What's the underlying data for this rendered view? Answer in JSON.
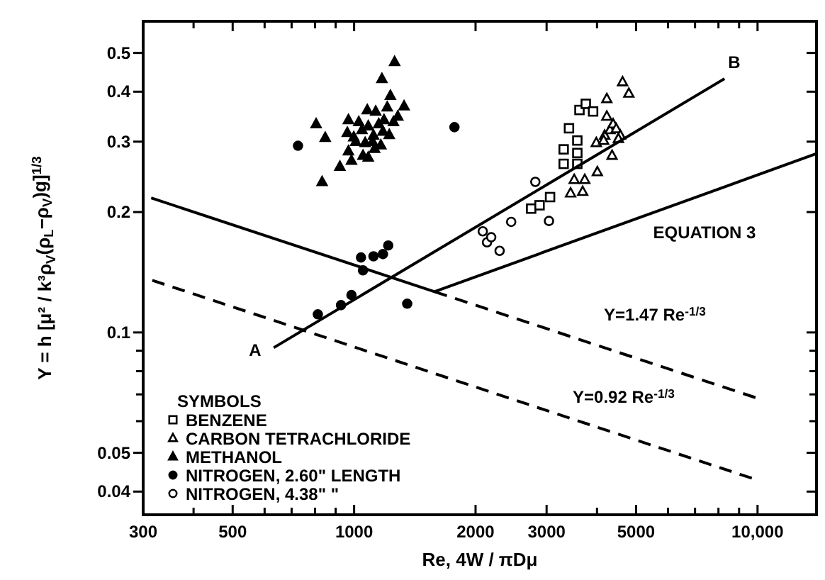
{
  "chart_data": {
    "type": "scatter",
    "xlabel": "Re, 4W / πDμ",
    "ylabel": "Y = h [μ² / k³ρ$_{V}$(ρ$_{L}$−ρ$_{V}$)g]$^{1/3}$",
    "legend_title": "SYMBOLS",
    "log": "xy",
    "grid": false,
    "legend": "bottom left",
    "xlim": [
      300,
      14000
    ],
    "ylim": [
      0.035,
      0.6
    ],
    "xticks": [
      300,
      {
        "value": 400,
        "label": null
      },
      500,
      {
        "value": 600,
        "label": null
      },
      {
        "value": 700,
        "label": null
      },
      {
        "value": 800,
        "label": null
      },
      {
        "value": 900,
        "label": null
      },
      1000,
      2000,
      3000,
      {
        "value": 4000,
        "label": null
      },
      5000,
      {
        "value": 6000,
        "label": null
      },
      {
        "value": 7000,
        "label": null
      },
      {
        "value": 8000,
        "label": null
      },
      {
        "value": 9000,
        "label": null
      },
      {
        "value": 10000,
        "label": "10,000"
      }
    ],
    "yticks": [
      0.04,
      0.05,
      {
        "value": 0.06,
        "label": null
      },
      {
        "value": 0.07,
        "label": null
      },
      {
        "value": 0.08,
        "label": null
      },
      {
        "value": 0.09,
        "label": null
      },
      0.1,
      0.2,
      0.3,
      0.4,
      0.5
    ],
    "series": [
      {
        "name": "BENZENE",
        "color": "#ffffff",
        "marker": "square",
        "x": [
          3307,
          3307,
          3409,
          3575,
          3575,
          3575,
          3619,
          3752,
          3912,
          2747,
          2882,
          3060
        ],
        "values": [
          0.287,
          0.264,
          0.324,
          0.302,
          0.281,
          0.264,
          0.36,
          0.373,
          0.357,
          0.204,
          0.208,
          0.218
        ]
      },
      {
        "name": "CARBON TETRACHLORIDE",
        "color": "#ffffff",
        "marker": "triangle",
        "x": [
          3440,
          3686,
          3512,
          3730,
          4008,
          4359,
          3984,
          4179,
          4306,
          4230,
          4230,
          4385,
          4464,
          4571,
          4628,
          4797,
          4519,
          4154
        ],
        "values": [
          0.223,
          0.225,
          0.241,
          0.241,
          0.252,
          0.277,
          0.298,
          0.311,
          0.321,
          0.347,
          0.384,
          0.332,
          0.323,
          0.311,
          0.423,
          0.396,
          0.305,
          0.302
        ]
      },
      {
        "name": "METHANOL",
        "color": "#000000",
        "marker": "triangle",
        "x": [
          805,
          848,
          833,
          922,
          968,
          985,
          968,
          962,
          1009,
          1052,
          1046,
          1078,
          1065,
          1084,
          1117,
          1124,
          1131,
          1151,
          1165,
          1179,
          1186,
          1208,
          1230,
          1222,
          1252,
          1283,
          1330,
          1172,
          1260,
          1111,
          1084,
          1027,
          998
        ],
        "values": [
          0.332,
          0.307,
          0.238,
          0.26,
          0.284,
          0.269,
          0.34,
          0.316,
          0.3,
          0.277,
          0.321,
          0.36,
          0.298,
          0.328,
          0.311,
          0.288,
          0.357,
          0.332,
          0.294,
          0.318,
          0.34,
          0.366,
          0.391,
          0.312,
          0.336,
          0.347,
          0.368,
          0.431,
          0.475,
          0.3,
          0.274,
          0.336,
          0.308
        ]
      },
      {
        "name": "NITROGEN, 2.60\" LENGTH",
        "color": "#000000",
        "marker": "circle",
        "x": [
          813,
          928,
          985,
          1052,
          1040,
          1117,
          1179,
          1215,
          1354,
          1773,
          726
        ],
        "values": [
          0.111,
          0.117,
          0.124,
          0.143,
          0.154,
          0.155,
          0.157,
          0.165,
          0.118,
          0.326,
          0.293
        ]
      },
      {
        "name": "NITROGEN, 4.38\"     \"",
        "color": "#ffffff",
        "marker": "circle",
        "x": [
          2084,
          2135,
          2187,
          2294,
          2451,
          2813,
          3041
        ],
        "values": [
          0.179,
          0.168,
          0.173,
          0.16,
          0.189,
          0.238,
          0.19
        ]
      },
      {
        "type": "line",
        "color": "#000000",
        "marker": "none",
        "line_style": "solid",
        "x": [
          632,
          8280
        ],
        "values": [
          0.0916,
          0.431
        ]
      },
      {
        "type": "line",
        "color": "#000000",
        "marker": "none",
        "line_style": "solid",
        "x": [
          314,
          1582,
          14000
        ],
        "values": [
          0.217,
          0.1265,
          0.28
        ]
      },
      {
        "type": "line",
        "color": "#000000",
        "marker": "none",
        "line_style": "dashed",
        "x": [
          1582,
          9890
        ],
        "values": [
          0.1265,
          0.0687
        ]
      },
      {
        "type": "line",
        "color": "#000000",
        "marker": "none",
        "line_style": "dashed",
        "x": [
          316,
          9680
        ],
        "values": [
          0.135,
          0.0432
        ]
      }
    ],
    "annotations": [
      "A",
      "B",
      "EQUATION 3",
      "Y=1.47 Re$^{-1/3}$",
      "Y=0.92 Re$^{-1/3}$"
    ]
  }
}
